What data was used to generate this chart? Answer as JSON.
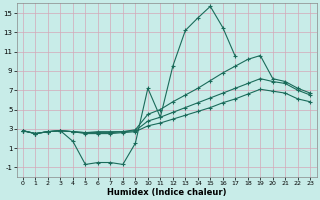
{
  "xlabel": "Humidex (Indice chaleur)",
  "bg_color": "#c8ece8",
  "grid_color": "#d4a8b8",
  "line_color": "#1a6b5a",
  "xlim": [
    -0.5,
    23.5
  ],
  "ylim": [
    -2.0,
    16.0
  ],
  "yticks": [
    -1,
    1,
    3,
    5,
    7,
    9,
    11,
    13,
    15
  ],
  "xticks": [
    0,
    1,
    2,
    3,
    4,
    5,
    6,
    7,
    8,
    9,
    10,
    11,
    12,
    13,
    14,
    15,
    16,
    17,
    18,
    19,
    20,
    21,
    22,
    23
  ],
  "line1_x": [
    0,
    1,
    2,
    3,
    4,
    5,
    6,
    7,
    8,
    9,
    10,
    11,
    12,
    13,
    14,
    15,
    16,
    17,
    18
  ],
  "line1_y": [
    2.8,
    2.5,
    2.7,
    2.8,
    1.7,
    -0.7,
    -0.5,
    -0.5,
    -0.7,
    1.5,
    7.2,
    4.2,
    9.5,
    13.2,
    14.5,
    15.7,
    13.5,
    10.5,
    null
  ],
  "line2_x": [
    0,
    1,
    2,
    3,
    4,
    5,
    6,
    7,
    8,
    9,
    10,
    11,
    12,
    13,
    14,
    15,
    16,
    17,
    18,
    19,
    20,
    21,
    22,
    23
  ],
  "line2_y": [
    2.8,
    2.5,
    2.7,
    2.8,
    2.7,
    2.6,
    2.7,
    2.7,
    2.7,
    2.9,
    4.5,
    5.0,
    5.8,
    6.5,
    7.2,
    8.0,
    8.8,
    9.5,
    10.2,
    10.6,
    8.2,
    7.9,
    7.2,
    6.7
  ],
  "line3_x": [
    0,
    1,
    2,
    3,
    4,
    5,
    6,
    7,
    8,
    9,
    10,
    11,
    12,
    13,
    14,
    15,
    16,
    17,
    18,
    19,
    20,
    21,
    22,
    23
  ],
  "line3_y": [
    2.8,
    2.5,
    2.7,
    2.8,
    2.7,
    2.6,
    2.6,
    2.6,
    2.7,
    2.8,
    3.8,
    4.2,
    4.7,
    5.2,
    5.7,
    6.2,
    6.7,
    7.2,
    7.7,
    8.2,
    7.9,
    7.7,
    7.0,
    6.5
  ],
  "line4_x": [
    0,
    1,
    2,
    3,
    4,
    5,
    6,
    7,
    8,
    9,
    10,
    11,
    12,
    13,
    14,
    15,
    16,
    17,
    18,
    19,
    20,
    21,
    22,
    23
  ],
  "line4_y": [
    2.8,
    2.5,
    2.7,
    2.8,
    2.7,
    2.5,
    2.5,
    2.5,
    2.6,
    2.7,
    3.3,
    3.6,
    4.0,
    4.4,
    4.8,
    5.2,
    5.7,
    6.1,
    6.6,
    7.1,
    6.9,
    6.7,
    6.1,
    5.8
  ]
}
